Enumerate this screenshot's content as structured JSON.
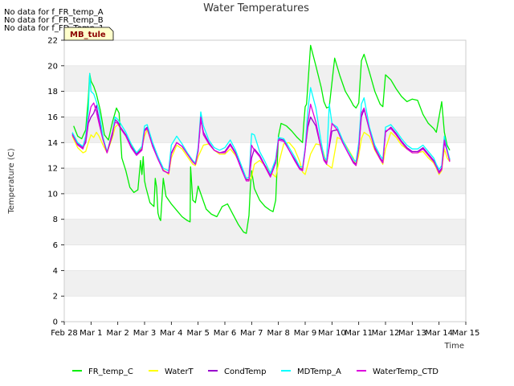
{
  "notes": [
    "No data for f_FR_temp_A",
    "No data for f_FR_temp_B",
    "No data for f_FD_Temp_1"
  ],
  "badge": "MB_tule",
  "chart_data": {
    "type": "line",
    "title": "Water Temperatures",
    "xlabel": "Time",
    "ylabel": "Temperature (C)",
    "xlim": [
      0,
      15
    ],
    "ylim": [
      0,
      22
    ],
    "xticks": [
      0,
      1,
      2,
      3,
      4,
      5,
      6,
      7,
      8,
      9,
      10,
      11,
      12,
      13,
      14,
      15
    ],
    "xtick_labels": [
      "Feb 28",
      "Mar 1",
      "Mar 2",
      "Mar 3",
      "Mar 4",
      "Mar 5",
      "Mar 6",
      "Mar 7",
      "Mar 8",
      "Mar 9",
      "Mar 10",
      "Mar 11",
      "Mar 12",
      "Mar 13",
      "Mar 14",
      "Mar 15"
    ],
    "yticks": [
      0,
      2,
      4,
      6,
      8,
      10,
      12,
      14,
      16,
      18,
      20,
      22
    ],
    "grid": "horizontal bands",
    "legend_position": "bottom",
    "series": [
      {
        "name": "FR_temp_C",
        "color": "#00ee00",
        "x": [
          0.35,
          0.5,
          0.65,
          0.8,
          0.9,
          0.95,
          1.0,
          1.1,
          1.2,
          1.35,
          1.5,
          1.65,
          1.8,
          1.95,
          2.05,
          2.15,
          2.3,
          2.45,
          2.6,
          2.75,
          2.85,
          2.9,
          2.95,
          3.0,
          3.05,
          3.2,
          3.35,
          3.4,
          3.45,
          3.5,
          3.55,
          3.6,
          3.7,
          3.8,
          3.9,
          4.0,
          4.2,
          4.4,
          4.6,
          4.7,
          4.72,
          4.8,
          4.9,
          5.0,
          5.1,
          5.3,
          5.5,
          5.7,
          5.9,
          6.1,
          6.3,
          6.5,
          6.7,
          6.8,
          6.9,
          6.95,
          7.0,
          7.1,
          7.3,
          7.5,
          7.7,
          7.8,
          7.9,
          8.0,
          8.1,
          8.3,
          8.5,
          8.7,
          8.9,
          8.95,
          9.0,
          9.05,
          9.2,
          9.4,
          9.6,
          9.7,
          9.8,
          9.9,
          10.1,
          10.3,
          10.5,
          10.7,
          10.8,
          10.9,
          11.0,
          11.1,
          11.2,
          11.4,
          11.6,
          11.8,
          11.9,
          12.0,
          12.2,
          12.4,
          12.6,
          12.8,
          13.0,
          13.2,
          13.4,
          13.6,
          13.8,
          13.9,
          14.0,
          14.1,
          14.2,
          14.3,
          14.4
        ],
        "y": [
          15.3,
          14.5,
          14.3,
          15.0,
          17.5,
          19.4,
          18.8,
          18.4,
          17.8,
          16.5,
          14.6,
          14.2,
          15.6,
          16.7,
          16.3,
          12.8,
          11.8,
          10.5,
          10.1,
          10.3,
          12.6,
          11.5,
          12.9,
          11.0,
          10.5,
          9.3,
          9.0,
          11.2,
          10.5,
          8.5,
          8.1,
          7.9,
          11.2,
          9.8,
          9.5,
          9.2,
          8.7,
          8.2,
          7.9,
          7.8,
          12.1,
          9.5,
          9.3,
          10.6,
          10.0,
          8.8,
          8.4,
          8.2,
          9.0,
          9.2,
          8.4,
          7.6,
          7.0,
          6.9,
          8.3,
          10.5,
          11.8,
          10.4,
          9.5,
          9.0,
          8.7,
          8.6,
          9.5,
          14.5,
          15.5,
          15.3,
          14.9,
          14.4,
          14.0,
          15.5,
          16.8,
          17.0,
          21.6,
          20.0,
          18.3,
          17.2,
          16.7,
          16.8,
          20.6,
          19.2,
          18.0,
          17.3,
          16.9,
          16.7,
          17.1,
          20.4,
          20.9,
          19.5,
          18.0,
          17.0,
          16.8,
          19.3,
          18.9,
          18.2,
          17.6,
          17.2,
          17.4,
          17.3,
          16.2,
          15.5,
          15.1,
          14.8,
          16.0,
          17.2,
          14.8,
          13.8,
          13.4
        ]
      },
      {
        "name": "WaterT",
        "color": "#ffff00",
        "x": [
          0.3,
          0.5,
          0.7,
          0.8,
          0.9,
          1.0,
          1.1,
          1.2,
          1.3,
          1.45,
          1.6,
          1.8,
          1.9,
          2.0,
          2.1,
          2.3,
          2.5,
          2.7,
          2.9,
          3.0,
          3.1,
          3.3,
          3.5,
          3.7,
          3.9,
          4.0,
          4.2,
          4.4,
          4.6,
          4.8,
          4.9,
          5.0,
          5.2,
          5.4,
          5.6,
          5.8,
          6.0,
          6.2,
          6.4,
          6.6,
          6.8,
          6.9,
          7.0,
          7.1,
          7.3,
          7.5,
          7.7,
          7.9,
          8.0,
          8.2,
          8.4,
          8.6,
          8.8,
          8.9,
          9.0,
          9.2,
          9.4,
          9.6,
          9.7,
          9.8,
          10.0,
          10.2,
          10.4,
          10.6,
          10.8,
          10.9,
          11.0,
          11.1,
          11.2,
          11.4,
          11.6,
          11.8,
          11.9,
          12.0,
          12.2,
          12.4,
          12.6,
          12.8,
          13.0,
          13.2,
          13.4,
          13.6,
          13.8,
          13.9,
          14.0,
          14.1,
          14.2,
          14.3,
          14.4
        ],
        "y": [
          14.5,
          13.6,
          13.2,
          13.3,
          14.0,
          14.6,
          14.4,
          14.8,
          14.5,
          13.8,
          13.2,
          14.4,
          15.2,
          15.4,
          15.2,
          14.5,
          13.8,
          13.1,
          13.6,
          14.5,
          15.0,
          13.8,
          12.7,
          11.9,
          11.5,
          12.8,
          13.8,
          13.5,
          12.9,
          12.3,
          12.2,
          12.9,
          13.8,
          13.9,
          13.4,
          13.1,
          13.1,
          13.5,
          13.0,
          12.2,
          11.2,
          11.0,
          11.3,
          12.3,
          12.6,
          12.2,
          11.7,
          11.3,
          12.3,
          13.9,
          14.0,
          13.5,
          12.5,
          11.7,
          11.5,
          13.1,
          13.9,
          13.8,
          13.1,
          12.3,
          12.0,
          14.4,
          14.2,
          13.5,
          12.8,
          12.2,
          13.0,
          14.3,
          14.8,
          14.5,
          13.4,
          12.7,
          12.3,
          13.5,
          14.8,
          14.4,
          13.8,
          13.5,
          13.2,
          13.2,
          13.3,
          12.8,
          12.4,
          12.0,
          11.5,
          11.8,
          13.5,
          12.8,
          12.5
        ]
      },
      {
        "name": "CondTemp",
        "color": "#9900cc",
        "x": [
          0.3,
          0.5,
          0.7,
          0.8,
          0.9,
          1.0,
          1.1,
          1.2,
          1.3,
          1.45,
          1.6,
          1.8,
          1.9,
          2.0,
          2.1,
          2.3,
          2.5,
          2.7,
          2.9,
          3.0,
          3.1,
          3.3,
          3.5,
          3.7,
          3.9,
          4.0,
          4.2,
          4.4,
          4.6,
          4.8,
          4.9,
          5.0,
          5.1,
          5.2,
          5.4,
          5.6,
          5.8,
          6.0,
          6.2,
          6.4,
          6.6,
          6.8,
          6.9,
          7.0,
          7.1,
          7.3,
          7.5,
          7.7,
          7.9,
          8.0,
          8.2,
          8.4,
          8.6,
          8.8,
          8.9,
          9.0,
          9.1,
          9.2,
          9.4,
          9.6,
          9.7,
          9.8,
          10.0,
          10.2,
          10.4,
          10.6,
          10.8,
          10.9,
          11.0,
          11.1,
          11.2,
          11.4,
          11.6,
          11.8,
          11.9,
          12.0,
          12.2,
          12.4,
          12.6,
          12.8,
          13.0,
          13.2,
          13.4,
          13.6,
          13.8,
          13.9,
          14.0,
          14.1,
          14.2,
          14.3,
          14.4
        ],
        "y": [
          14.7,
          13.9,
          13.6,
          14.0,
          15.5,
          16.0,
          16.3,
          16.9,
          15.8,
          14.3,
          13.2,
          14.6,
          15.8,
          15.6,
          15.2,
          14.6,
          13.7,
          13.1,
          13.5,
          15.0,
          15.2,
          13.8,
          12.8,
          11.8,
          11.6,
          13.2,
          14.0,
          13.7,
          13.1,
          12.5,
          12.3,
          13.4,
          15.8,
          14.8,
          14.0,
          13.4,
          13.2,
          13.3,
          13.9,
          13.2,
          12.1,
          11.1,
          11.1,
          12.8,
          13.5,
          13.0,
          12.2,
          11.4,
          12.5,
          14.3,
          14.2,
          13.4,
          12.7,
          12.0,
          11.9,
          13.5,
          15.2,
          16.0,
          15.3,
          13.5,
          12.7,
          12.4,
          14.9,
          15.0,
          14.0,
          13.2,
          12.5,
          12.3,
          13.6,
          16.0,
          16.6,
          15.0,
          13.6,
          12.8,
          12.5,
          14.8,
          15.2,
          14.7,
          14.1,
          13.6,
          13.3,
          13.3,
          13.6,
          13.1,
          12.6,
          12.2,
          11.7,
          12.0,
          14.0,
          13.4,
          12.6
        ]
      },
      {
        "name": "MDTemp_A",
        "color": "#00ffff",
        "x": [
          0.3,
          0.5,
          0.7,
          0.8,
          0.9,
          0.95,
          1.0,
          1.1,
          1.2,
          1.3,
          1.45,
          1.6,
          1.8,
          1.9,
          2.0,
          2.1,
          2.3,
          2.5,
          2.7,
          2.9,
          3.0,
          3.1,
          3.3,
          3.5,
          3.7,
          3.9,
          4.0,
          4.2,
          4.4,
          4.6,
          4.8,
          4.9,
          5.0,
          5.1,
          5.2,
          5.4,
          5.6,
          5.8,
          6.0,
          6.2,
          6.4,
          6.6,
          6.8,
          6.9,
          7.0,
          7.1,
          7.3,
          7.5,
          7.7,
          7.9,
          8.0,
          8.2,
          8.4,
          8.6,
          8.8,
          8.9,
          9.0,
          9.1,
          9.2,
          9.4,
          9.6,
          9.7,
          9.8,
          9.9,
          10.0,
          10.2,
          10.4,
          10.6,
          10.8,
          10.9,
          11.0,
          11.1,
          11.2,
          11.4,
          11.6,
          11.8,
          11.9,
          12.0,
          12.2,
          12.4,
          12.6,
          12.8,
          13.0,
          13.2,
          13.4,
          13.6,
          13.8,
          13.9,
          14.0,
          14.1,
          14.2,
          14.3,
          14.4
        ],
        "y": [
          14.8,
          14.0,
          13.7,
          14.5,
          16.5,
          19.4,
          18.0,
          17.8,
          17.2,
          16.5,
          14.4,
          13.3,
          14.8,
          16.0,
          15.8,
          15.5,
          14.8,
          13.9,
          13.2,
          13.7,
          15.3,
          15.4,
          14.0,
          12.9,
          12.0,
          11.8,
          13.8,
          14.5,
          13.9,
          13.2,
          12.6,
          12.4,
          13.6,
          16.4,
          15.3,
          14.2,
          13.6,
          13.4,
          13.6,
          14.2,
          13.4,
          12.3,
          11.2,
          11.3,
          14.7,
          14.6,
          13.3,
          12.5,
          11.6,
          12.7,
          14.4,
          14.3,
          13.6,
          12.9,
          12.1,
          12.1,
          13.6,
          16.5,
          18.3,
          16.7,
          14.0,
          12.9,
          12.6,
          17.0,
          15.5,
          15.2,
          14.2,
          13.4,
          12.7,
          12.5,
          14.0,
          17.0,
          17.5,
          15.2,
          13.8,
          13.0,
          12.7,
          15.2,
          15.4,
          14.9,
          14.3,
          13.8,
          13.5,
          13.5,
          13.8,
          13.3,
          12.8,
          12.3,
          11.9,
          12.2,
          14.5,
          13.5,
          12.7
        ]
      },
      {
        "name": "WaterTemp_CTD",
        "color": "#dd00dd",
        "x": [
          0.3,
          0.5,
          0.7,
          0.8,
          0.9,
          1.0,
          1.1,
          1.2,
          1.3,
          1.45,
          1.6,
          1.8,
          1.9,
          2.0,
          2.1,
          2.3,
          2.5,
          2.7,
          2.9,
          3.0,
          3.1,
          3.3,
          3.5,
          3.7,
          3.9,
          4.0,
          4.2,
          4.4,
          4.6,
          4.8,
          4.9,
          5.0,
          5.1,
          5.2,
          5.4,
          5.6,
          5.8,
          6.0,
          6.2,
          6.4,
          6.6,
          6.8,
          6.9,
          7.0,
          7.1,
          7.3,
          7.5,
          7.7,
          7.9,
          8.0,
          8.2,
          8.4,
          8.6,
          8.8,
          8.9,
          9.0,
          9.1,
          9.2,
          9.4,
          9.6,
          9.7,
          9.8,
          10.0,
          10.2,
          10.4,
          10.6,
          10.8,
          10.9,
          11.0,
          11.1,
          11.2,
          11.4,
          11.6,
          11.8,
          11.9,
          12.0,
          12.2,
          12.4,
          12.6,
          12.8,
          13.0,
          13.2,
          13.4,
          13.6,
          13.8,
          13.9,
          14.0,
          14.1,
          14.2,
          14.3,
          14.4
        ],
        "y": [
          14.6,
          13.8,
          13.5,
          14.2,
          15.8,
          16.8,
          17.1,
          16.4,
          15.5,
          14.2,
          13.2,
          14.8,
          15.6,
          15.5,
          15.1,
          14.5,
          13.6,
          13.0,
          13.4,
          14.9,
          15.1,
          13.7,
          12.7,
          11.8,
          11.6,
          13.1,
          14.0,
          13.7,
          13.1,
          12.5,
          12.3,
          13.3,
          16.0,
          14.6,
          13.9,
          13.4,
          13.2,
          13.2,
          13.8,
          13.1,
          12.0,
          11.0,
          11.0,
          13.8,
          13.4,
          12.9,
          12.1,
          11.3,
          12.4,
          14.2,
          14.1,
          13.4,
          12.6,
          11.9,
          11.8,
          13.4,
          15.5,
          17.0,
          15.6,
          13.5,
          12.6,
          12.3,
          15.5,
          15.0,
          14.0,
          13.2,
          12.4,
          12.2,
          13.5,
          16.3,
          16.7,
          15.0,
          13.5,
          12.7,
          12.4,
          14.9,
          15.1,
          14.6,
          14.0,
          13.5,
          13.2,
          13.2,
          13.5,
          13.0,
          12.5,
          12.1,
          11.6,
          11.9,
          14.2,
          13.3,
          12.5
        ]
      }
    ]
  }
}
